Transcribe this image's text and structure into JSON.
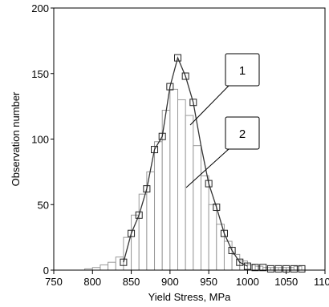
{
  "chart_data": {
    "type": "bar",
    "title": "",
    "xlabel": "Yield Stress, MPa",
    "ylabel": "Observation number",
    "xlim": [
      750,
      1100
    ],
    "ylim": [
      0,
      200
    ],
    "x_ticks": [
      "750",
      "800",
      "850",
      "900",
      "950",
      "1000",
      "1050",
      "1100"
    ],
    "y_ticks": [
      "0",
      "50",
      "100",
      "150",
      "200"
    ],
    "bin_width": 10,
    "bins": [
      {
        "center": 795,
        "count": 1
      },
      {
        "center": 805,
        "count": 2
      },
      {
        "center": 815,
        "count": 4
      },
      {
        "center": 825,
        "count": 6
      },
      {
        "center": 835,
        "count": 10
      },
      {
        "center": 845,
        "count": 25
      },
      {
        "center": 855,
        "count": 42
      },
      {
        "center": 865,
        "count": 58
      },
      {
        "center": 875,
        "count": 75
      },
      {
        "center": 885,
        "count": 98
      },
      {
        "center": 895,
        "count": 122
      },
      {
        "center": 905,
        "count": 138
      },
      {
        "center": 915,
        "count": 130
      },
      {
        "center": 925,
        "count": 118
      },
      {
        "center": 935,
        "count": 95
      },
      {
        "center": 945,
        "count": 72
      },
      {
        "center": 955,
        "count": 50
      },
      {
        "center": 965,
        "count": 35
      },
      {
        "center": 975,
        "count": 22
      },
      {
        "center": 985,
        "count": 12
      },
      {
        "center": 995,
        "count": 7
      },
      {
        "center": 1005,
        "count": 4
      },
      {
        "center": 1015,
        "count": 3
      },
      {
        "center": 1025,
        "count": 2
      },
      {
        "center": 1035,
        "count": 2
      },
      {
        "center": 1045,
        "count": 2
      },
      {
        "center": 1055,
        "count": 2
      },
      {
        "center": 1065,
        "count": 3
      }
    ],
    "fit_curve": {
      "x": [
        840,
        850,
        860,
        870,
        880,
        890,
        900,
        910,
        920,
        930,
        940,
        950,
        960,
        970,
        980,
        990,
        1000
      ],
      "y": [
        6,
        28,
        42,
        62,
        92,
        102,
        140,
        162,
        148,
        128,
        95,
        66,
        48,
        28,
        15,
        6,
        3
      ]
    },
    "markers": {
      "x": [
        840,
        850,
        860,
        870,
        880,
        890,
        900,
        910,
        920,
        930,
        950,
        960,
        970,
        980,
        990,
        1000,
        1010,
        1020,
        1030,
        1040,
        1050,
        1060,
        1070
      ],
      "y": [
        6,
        28,
        42,
        62,
        92,
        102,
        140,
        162,
        148,
        128,
        66,
        48,
        28,
        15,
        6,
        3,
        2,
        2,
        1,
        1,
        1,
        1,
        1
      ]
    },
    "annotations": [
      "1",
      "2"
    ],
    "grid": false,
    "legend": "none"
  }
}
